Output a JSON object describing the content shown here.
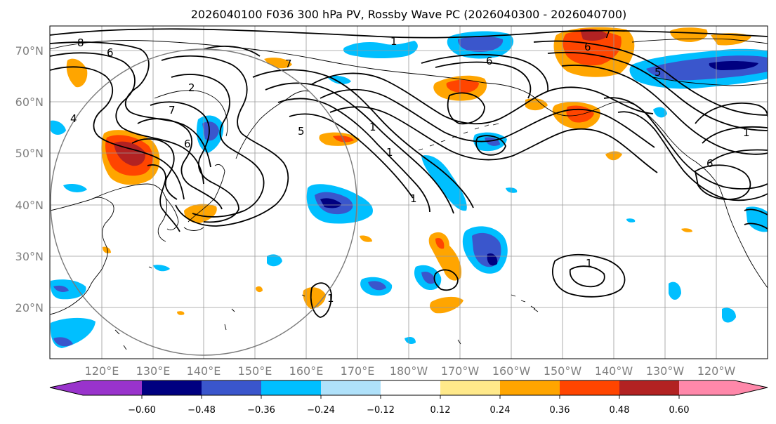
{
  "title": "2026040100 F036 300 hPa PV, Rossby Wave PC (2026040300 - 2026040700)",
  "map": {
    "lon_labels": [
      "120°E",
      "130°E",
      "140°E",
      "150°E",
      "160°E",
      "170°E",
      "180°W",
      "170°W",
      "160°W",
      "150°W",
      "140°W",
      "130°W",
      "120°W"
    ],
    "lat_labels": [
      "70°N",
      "60°N",
      "50°N",
      "40°N",
      "30°N",
      "20°N"
    ],
    "contour_labels": [
      {
        "id": "l8",
        "text": "8"
      },
      {
        "id": "l6a",
        "text": "6"
      },
      {
        "id": "l4",
        "text": "4"
      },
      {
        "id": "l2",
        "text": "2"
      },
      {
        "id": "l7a",
        "text": "7"
      },
      {
        "id": "l6b",
        "text": "6"
      },
      {
        "id": "l5",
        "text": "5"
      },
      {
        "id": "l1a",
        "text": "1"
      },
      {
        "id": "l1b",
        "text": "1"
      },
      {
        "id": "l1c",
        "text": "1"
      },
      {
        "id": "l6c",
        "text": "6"
      },
      {
        "id": "l6d",
        "text": "6"
      },
      {
        "id": "l7b",
        "text": "7"
      },
      {
        "id": "l5b",
        "text": "5"
      },
      {
        "id": "l1d",
        "text": "1"
      },
      {
        "id": "l6e",
        "text": "6"
      },
      {
        "id": "l1e",
        "text": "1"
      },
      {
        "id": "l1f",
        "text": "1"
      },
      {
        "id": "l1g",
        "text": "1"
      },
      {
        "id": "l7c",
        "text": "7"
      }
    ]
  },
  "colorbar": {
    "ticks": [
      "−0.60",
      "−0.48",
      "−0.36",
      "−0.24",
      "−0.12",
      "0.12",
      "0.24",
      "0.36",
      "0.48",
      "0.60"
    ],
    "colors": [
      "#9933cc",
      "#000080",
      "#3a56cc",
      "#00bfff",
      "#afe1fa",
      "#ffffff",
      "#ffe98a",
      "#ffa500",
      "#ff4500",
      "#b22222",
      "#ff88aa"
    ]
  }
}
